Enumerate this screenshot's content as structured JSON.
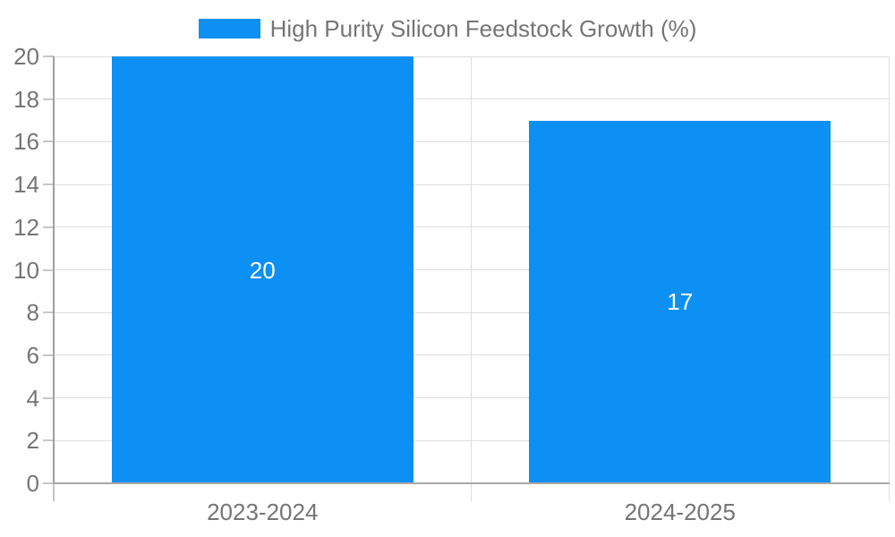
{
  "chart_data": {
    "type": "bar",
    "title": "",
    "categories": [
      "2023-2024",
      "2024-2025"
    ],
    "series": [
      {
        "name": "High Purity Silicon Feedstock Growth (%)",
        "values": [
          20,
          17
        ]
      }
    ],
    "value_labels": [
      "20",
      "17"
    ],
    "xlabel": "",
    "ylabel": "",
    "ylim": [
      0,
      20
    ],
    "ytick_step": 2,
    "ytick_labels": [
      "0",
      "2",
      "4",
      "6",
      "8",
      "10",
      "12",
      "14",
      "16",
      "18",
      "20"
    ],
    "grid": true,
    "legend_position": "top"
  },
  "colors": {
    "bar": "#0d90f3",
    "grid": "#dedede",
    "axis_y": "#9e9e9e",
    "axis_x": "#a8a8a8",
    "tick": "#c6c6c6",
    "tick_text": "#757575",
    "value_text": "#ffffff",
    "background": "#ffffff"
  }
}
